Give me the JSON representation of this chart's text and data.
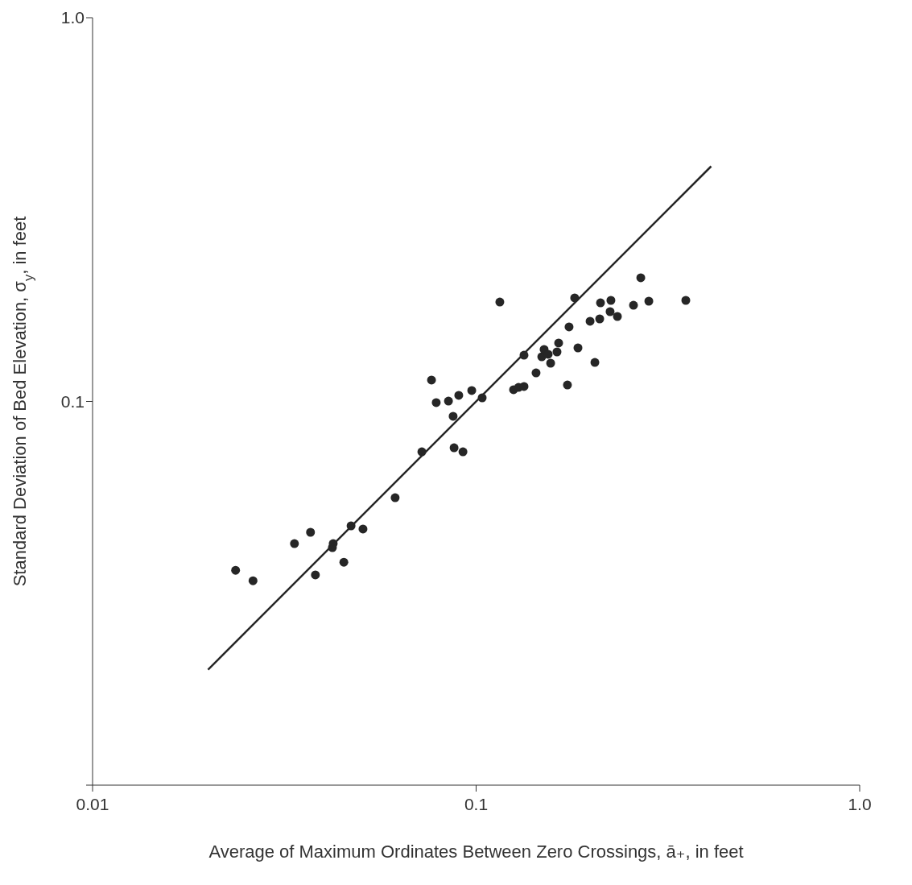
{
  "chart_data": {
    "type": "scatter",
    "xlabel": "Average of Maximum Ordinates Between Zero Crossings, ā₊, in feet",
    "ylabel": "Standard Deviation of Bed Elevation, σ$_{y}$, in feet",
    "xlim": [
      0.01,
      1
    ],
    "ylim": [
      0.01,
      1
    ],
    "xticks": [
      0.01,
      0.1,
      {
        "value": 1,
        "label": "1.0"
      }
    ],
    "yticks": [
      {
        "value": 0.01,
        "label": null
      },
      0.1,
      {
        "value": 1,
        "label": "1.0"
      }
    ],
    "log": "xy",
    "series": [
      {
        "marker": "circle",
        "color": "#262626",
        "x": [
          0.0236,
          0.0262,
          0.0336,
          0.037,
          0.0381,
          0.0422,
          0.0424,
          0.0452,
          0.0472,
          0.0507,
          0.0615,
          0.0722,
          0.0765,
          0.0787,
          0.0847,
          0.0871,
          0.0876,
          0.0901,
          0.0924,
          0.0974,
          0.1037,
          0.1153,
          0.1252,
          0.129,
          0.1333,
          0.1333,
          0.1433,
          0.1483,
          0.1504,
          0.1541,
          0.1564,
          0.1625,
          0.1641,
          0.173,
          0.1747,
          0.1807,
          0.1843,
          0.1982,
          0.204,
          0.21,
          0.211,
          0.2246,
          0.2235,
          0.2335,
          0.2572,
          0.2687,
          0.282,
          0.3521
        ],
        "values": [
          0.0363,
          0.0341,
          0.0426,
          0.0456,
          0.0353,
          0.0416,
          0.0426,
          0.0381,
          0.0474,
          0.0465,
          0.0561,
          0.0739,
          0.1137,
          0.0993,
          0.1002,
          0.0915,
          0.0757,
          0.1037,
          0.0739,
          0.1068,
          0.1022,
          0.1816,
          0.1073,
          0.1088,
          0.1094,
          0.132,
          0.1187,
          0.1307,
          0.1366,
          0.1327,
          0.1258,
          0.1346,
          0.142,
          0.1104,
          0.1564,
          0.1861,
          0.1379,
          0.1618,
          0.1264,
          0.1641,
          0.1807,
          0.1834,
          0.1714,
          0.1665,
          0.1781,
          0.21,
          0.1825,
          0.1834
        ]
      },
      {
        "type": "line",
        "marker": "none",
        "color": "#262626",
        "x": [
          0.02,
          0.41
        ],
        "values": [
          0.02,
          0.41
        ]
      }
    ]
  }
}
